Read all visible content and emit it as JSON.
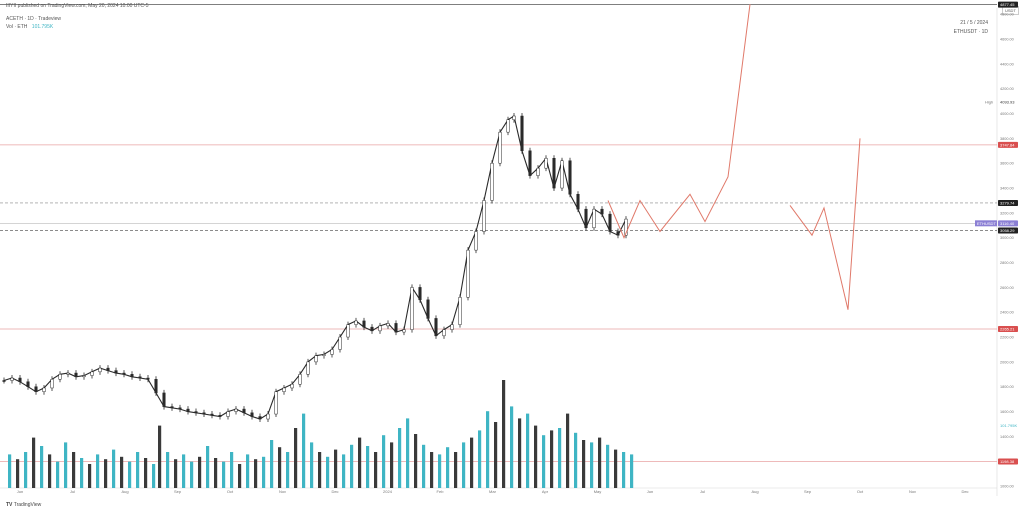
{
  "header": {
    "published": "IIIYII published on TradingView.com, May 20, 2024 10:00 UTC-5",
    "symbol_line": "ACETH · 1D · Tradeview",
    "volume_label": "Vol · ETH",
    "volume_value": "101.795K",
    "date_box": "21 / 5 / 2024",
    "pair_box": "ETHUSDT · 1D"
  },
  "footer": {
    "brand": "TradingView"
  },
  "currency": "USDT",
  "colors": {
    "candle": "#2a2a2a",
    "volume_up": "#3fb5c4",
    "volume_down": "#3a3a3a",
    "projection": "#e0796a",
    "resistance_line": "#e8a3a3",
    "price_badge_red": "#d94f4f",
    "price_badge_purple": "#8b7fd4",
    "price_badge_dark": "#222222"
  },
  "chart_data": {
    "type": "line",
    "x_labels": [
      "Jun",
      "Jul",
      "Aug",
      "Sep",
      "Oct",
      "Nov",
      "Dec",
      "2024",
      "Feb",
      "Mar",
      "Apr",
      "May",
      "Jun",
      "Jul",
      "Aug",
      "Sep",
      "Oct",
      "Nov",
      "Dec"
    ],
    "y_ticks": [
      4800,
      4600,
      4400,
      4200,
      4000,
      3800,
      3600,
      3400,
      3200,
      3000,
      2800,
      2600,
      2400,
      2200,
      2000,
      1800,
      1600,
      1400,
      1200,
      1000
    ],
    "ylim": [
      920,
      4850
    ],
    "price_labels": {
      "top_level": "4877.45",
      "high": "4093.93",
      "red_upper": "3747.84",
      "dashed_upper": "3279.74",
      "current": "3116.40",
      "current_tag": "ETHUSDT",
      "dashed_lower": "3058.29",
      "red_lower": "2265.21",
      "low_volume_level": "1198.38",
      "volume_mark": "101.795K"
    },
    "levels": [
      {
        "price": 4877,
        "style": "solid",
        "color": "#555555"
      },
      {
        "price": 3748,
        "style": "solid",
        "color": "#e8a3a3"
      },
      {
        "price": 3280,
        "style": "dashed",
        "color": "#888888"
      },
      {
        "price": 3116,
        "style": "solid",
        "color": "#bbbbbb"
      },
      {
        "price": 3058,
        "style": "dashed",
        "color": "#666666"
      },
      {
        "price": 2265,
        "style": "solid",
        "color": "#e8a3a3"
      },
      {
        "price": 1198,
        "style": "solid",
        "color": "#e8a3a3"
      }
    ],
    "series": [
      {
        "x": [
          0,
          8,
          16,
          24,
          32,
          40,
          48,
          56,
          64,
          72,
          80,
          88,
          96,
          104,
          112,
          120,
          128,
          136,
          144,
          152,
          160,
          168,
          176,
          184,
          192,
          200,
          208,
          216,
          224,
          232,
          240,
          248,
          256,
          264,
          272,
          280,
          288,
          296,
          304,
          312,
          320,
          328,
          336,
          344,
          352,
          360,
          368,
          376,
          384,
          392,
          400,
          408,
          416,
          424,
          432,
          440,
          448,
          456,
          464,
          472,
          480,
          488,
          496,
          504,
          510,
          518,
          526,
          534,
          542,
          550,
          558,
          566,
          574,
          582,
          590,
          598,
          606,
          614,
          622
        ],
        "values": [
          1850,
          1870,
          1840,
          1800,
          1760,
          1790,
          1860,
          1900,
          1910,
          1880,
          1890,
          1920,
          1950,
          1930,
          1910,
          1900,
          1880,
          1870,
          1860,
          1750,
          1640,
          1630,
          1620,
          1600,
          1590,
          1580,
          1570,
          1560,
          1600,
          1620,
          1590,
          1560,
          1540,
          1580,
          1760,
          1790,
          1820,
          1900,
          2000,
          2050,
          2060,
          2100,
          2200,
          2300,
          2330,
          2280,
          2250,
          2290,
          2310,
          2240,
          2260,
          2600,
          2500,
          2350,
          2210,
          2260,
          2300,
          2520,
          2900,
          3050,
          3300,
          3600,
          3850,
          3950,
          3980,
          3700,
          3500,
          3560,
          3640,
          3400,
          3620,
          3350,
          3230,
          3080,
          3230,
          3190,
          3050,
          3020,
          3150
        ]
      }
    ],
    "volume": {
      "x": [
        6,
        14,
        22,
        30,
        38,
        46,
        54,
        62,
        70,
        78,
        86,
        94,
        102,
        110,
        118,
        126,
        134,
        142,
        150,
        156,
        164,
        172,
        180,
        188,
        196,
        204,
        212,
        220,
        228,
        236,
        244,
        252,
        260,
        268,
        276,
        284,
        292,
        300,
        308,
        316,
        324,
        332,
        340,
        348,
        356,
        364,
        372,
        380,
        388,
        396,
        404,
        412,
        420,
        428,
        436,
        444,
        452,
        460,
        468,
        476,
        484,
        492,
        500,
        508,
        516,
        524,
        532,
        540,
        548,
        556,
        564,
        572,
        580,
        588,
        596,
        604,
        612,
        620,
        628
      ],
      "values": [
        0.28,
        0.24,
        0.3,
        0.42,
        0.35,
        0.28,
        0.22,
        0.38,
        0.3,
        0.25,
        0.2,
        0.28,
        0.24,
        0.32,
        0.26,
        0.22,
        0.3,
        0.25,
        0.2,
        0.52,
        0.3,
        0.24,
        0.28,
        0.22,
        0.26,
        0.35,
        0.25,
        0.22,
        0.3,
        0.2,
        0.28,
        0.24,
        0.26,
        0.4,
        0.34,
        0.3,
        0.5,
        0.62,
        0.38,
        0.3,
        0.26,
        0.32,
        0.28,
        0.36,
        0.42,
        0.35,
        0.3,
        0.44,
        0.38,
        0.5,
        0.58,
        0.45,
        0.36,
        0.3,
        0.28,
        0.34,
        0.3,
        0.38,
        0.42,
        0.48,
        0.64,
        0.55,
        0.9,
        0.68,
        0.58,
        0.62,
        0.52,
        0.44,
        0.48,
        0.5,
        0.62,
        0.46,
        0.4,
        0.38,
        0.42,
        0.36,
        0.32,
        0.3,
        0.28
      ],
      "up": [
        true,
        false,
        true,
        false,
        true,
        false,
        true,
        true,
        false,
        true,
        false,
        true,
        false,
        true,
        false,
        true,
        true,
        false,
        true,
        false,
        true,
        false,
        true,
        true,
        false,
        true,
        false,
        true,
        true,
        false,
        true,
        false,
        true,
        true,
        false,
        true,
        false,
        true,
        true,
        false,
        true,
        false,
        true,
        true,
        false,
        true,
        false,
        true,
        false,
        true,
        true,
        false,
        true,
        false,
        true,
        true,
        false,
        true,
        false,
        true,
        true,
        false,
        false,
        true,
        false,
        true,
        false,
        true,
        false,
        true,
        false,
        true,
        false,
        true,
        false,
        true,
        false,
        true,
        true
      ]
    },
    "projection": [
      {
        "x": [
          608,
          624,
          640,
          660,
          690,
          705,
          728,
          750
        ],
        "values": [
          3300,
          3000,
          3300,
          3050,
          3350,
          3130,
          3490,
          4880
        ]
      },
      {
        "x": [
          790,
          812,
          824,
          848,
          860
        ],
        "values": [
          3260,
          3020,
          3240,
          2420,
          3800
        ]
      }
    ],
    "grid": false,
    "legend": "none"
  }
}
